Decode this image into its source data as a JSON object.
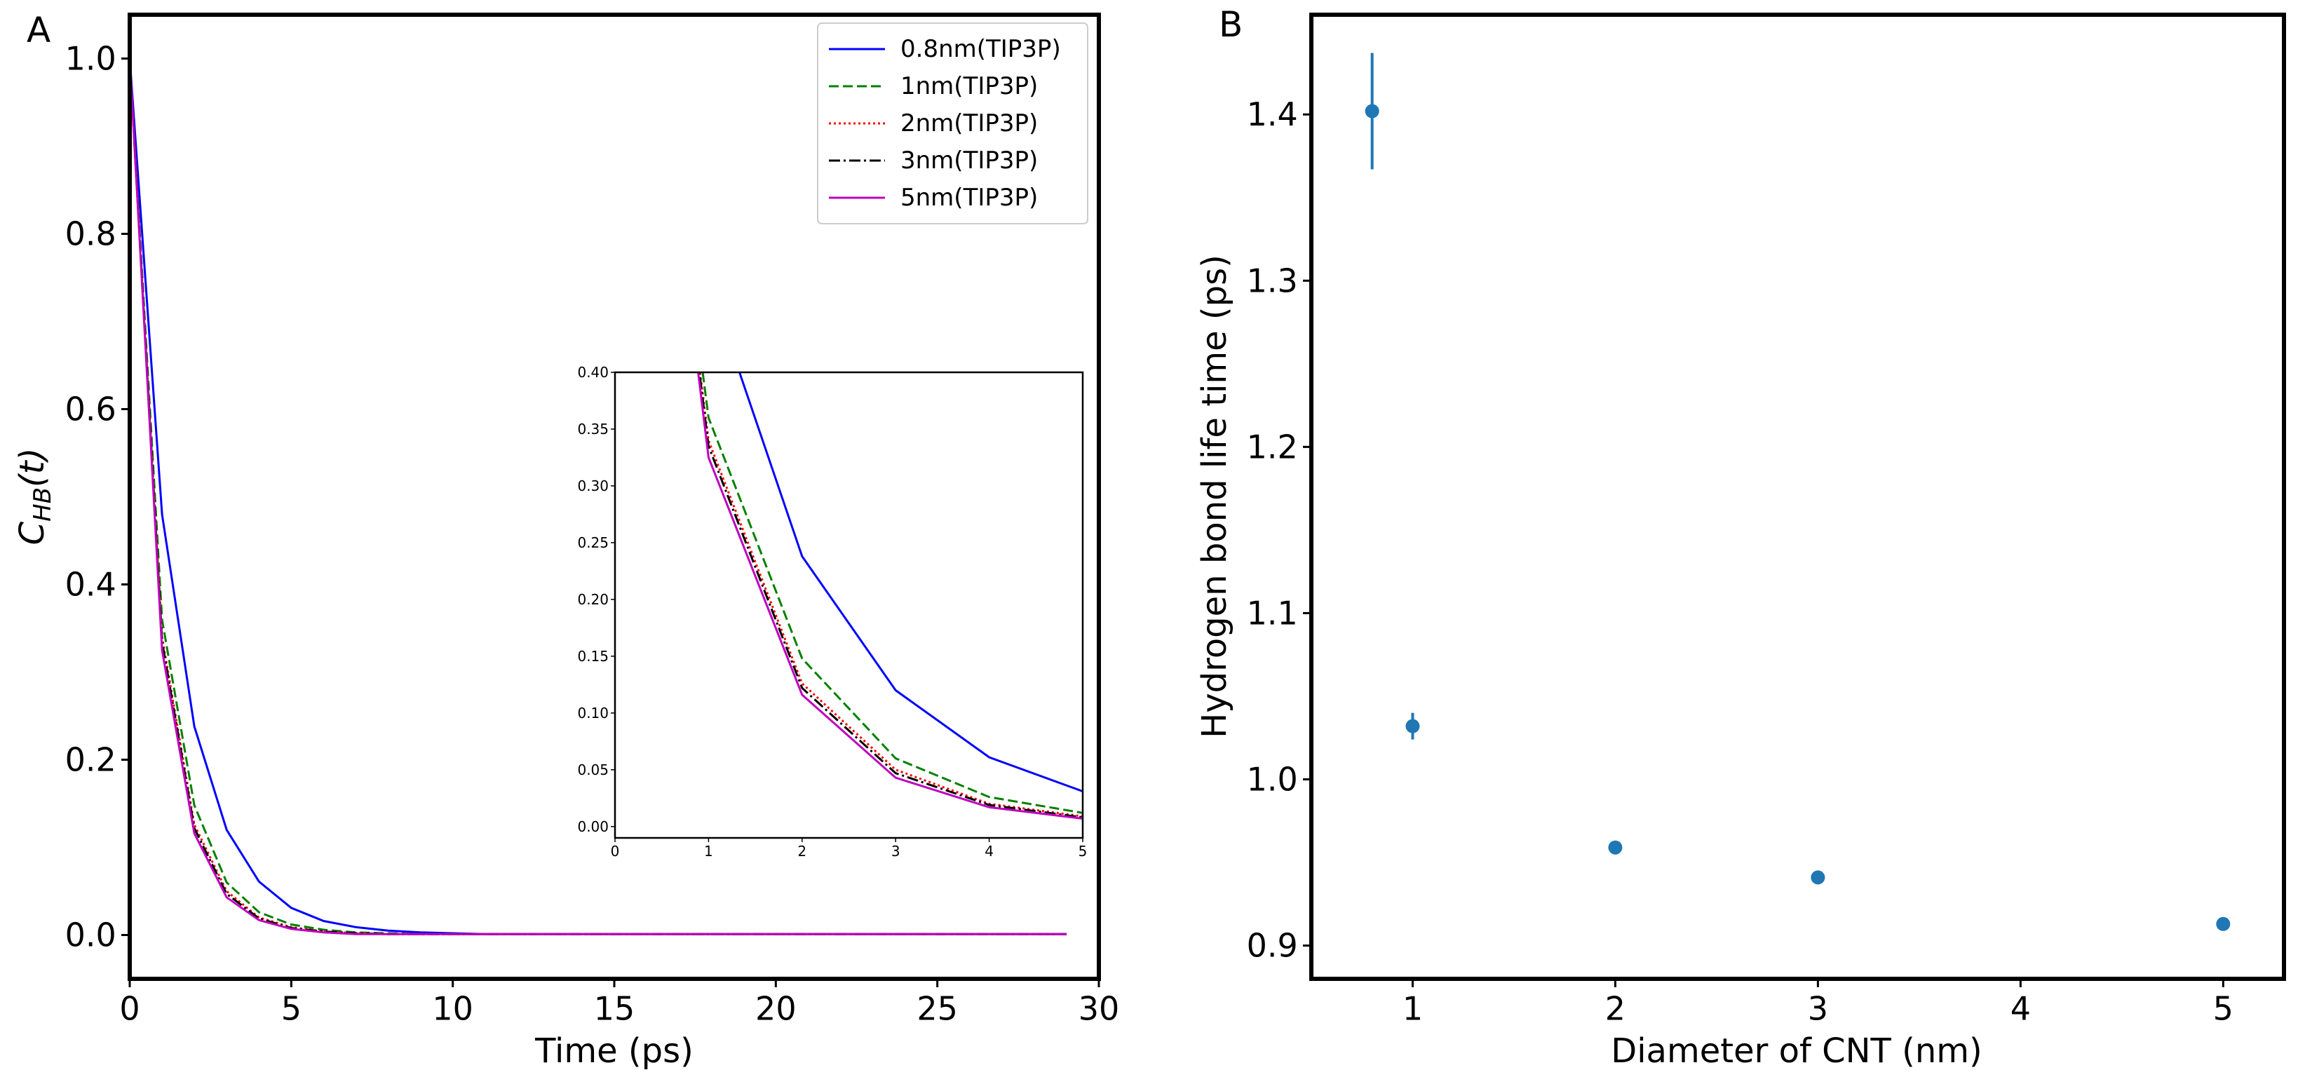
{
  "figure": {
    "panel_labels": [
      "A",
      "B"
    ]
  },
  "colors": {
    "axes": "#000000",
    "blue": "#0000ff",
    "green": "#008000",
    "red": "#ff0000",
    "black": "#000000",
    "magenta": "#bf00bf",
    "marker": "#1f77b4"
  },
  "chart_data": [
    {
      "panel": "A",
      "type": "line",
      "title": "",
      "xlabel": "Time (ps)",
      "ylabel_base": "C",
      "ylabel_sub": "HB",
      "ylabel_arg": "(t)",
      "xlim": [
        0,
        30
      ],
      "ylim": [
        -0.05,
        1.05
      ],
      "xticks": [
        0,
        5,
        10,
        15,
        20,
        25,
        30
      ],
      "yticks": [
        0.0,
        0.2,
        0.4,
        0.6,
        0.8,
        1.0
      ],
      "xtick_labels": [
        "0",
        "5",
        "10",
        "15",
        "20",
        "25",
        "30"
      ],
      "ytick_labels": [
        "0.0",
        "0.2",
        "0.4",
        "0.6",
        "0.8",
        "1.0"
      ],
      "legend_position": "top-right",
      "x": [
        0,
        1,
        2,
        3,
        4,
        5,
        6,
        7,
        8,
        9,
        10,
        11,
        12,
        13,
        14,
        15,
        16,
        17,
        18,
        19,
        20,
        21,
        22,
        23,
        24,
        25,
        26,
        27,
        28,
        29
      ],
      "series": [
        {
          "name": "0.8nm(TIP3P)",
          "color": "blue",
          "dash": "solid",
          "values": [
            1.0,
            0.48,
            0.238,
            0.12,
            0.061,
            0.031,
            0.016,
            0.009,
            0.005,
            0.003,
            0.002,
            0.001,
            0.001,
            0.001,
            0.001,
            0.001,
            0.001,
            0.001,
            0.001,
            0.001,
            0.001,
            0.001,
            0.001,
            0.001,
            0.001,
            0.001,
            0.001,
            0.001,
            0.001,
            0.001
          ]
        },
        {
          "name": "1nm(TIP3P)",
          "color": "green",
          "dash": "dashed",
          "values": [
            1.0,
            0.36,
            0.148,
            0.06,
            0.026,
            0.012,
            0.006,
            0.003,
            0.002,
            0.001,
            0.001,
            0.001,
            0.001,
            0.001,
            0.001,
            0.001,
            0.001,
            0.001,
            0.001,
            0.001,
            0.001,
            0.001,
            0.001,
            0.001,
            0.001,
            0.001,
            0.001,
            0.001,
            0.001,
            0.001
          ]
        },
        {
          "name": "2nm(TIP3P)",
          "color": "red",
          "dash": "dotted",
          "values": [
            1.0,
            0.34,
            0.126,
            0.05,
            0.02,
            0.009,
            0.004,
            0.002,
            0.001,
            0.001,
            0.001,
            0.001,
            0.001,
            0.001,
            0.001,
            0.001,
            0.001,
            0.001,
            0.001,
            0.001,
            0.001,
            0.001,
            0.001,
            0.001,
            0.001,
            0.001,
            0.001,
            0.001,
            0.001,
            0.001
          ]
        },
        {
          "name": "3nm(TIP3P)",
          "color": "black",
          "dash": "dashdot",
          "values": [
            1.0,
            0.335,
            0.122,
            0.047,
            0.019,
            0.008,
            0.004,
            0.002,
            0.001,
            0.001,
            0.001,
            0.001,
            0.001,
            0.001,
            0.001,
            0.001,
            0.001,
            0.001,
            0.001,
            0.001,
            0.001,
            0.001,
            0.001,
            0.001,
            0.001,
            0.001,
            0.001,
            0.001,
            0.001,
            0.001
          ]
        },
        {
          "name": "5nm(TIP3P)",
          "color": "magenta",
          "dash": "solid",
          "values": [
            1.0,
            0.325,
            0.116,
            0.043,
            0.017,
            0.007,
            0.003,
            0.001,
            0.001,
            0.001,
            0.001,
            0.001,
            0.001,
            0.001,
            0.001,
            0.001,
            0.001,
            0.001,
            0.001,
            0.001,
            0.001,
            0.001,
            0.001,
            0.001,
            0.001,
            0.001,
            0.001,
            0.001,
            0.001,
            0.001
          ]
        }
      ],
      "inset": {
        "xlim": [
          0,
          5
        ],
        "ylim": [
          -0.01,
          0.4
        ],
        "xticks": [
          0,
          1,
          2,
          3,
          4,
          5
        ],
        "yticks": [
          0.0,
          0.05,
          0.1,
          0.15,
          0.2,
          0.25,
          0.3,
          0.35,
          0.4
        ],
        "xtick_labels": [
          "0",
          "1",
          "2",
          "3",
          "4",
          "5"
        ],
        "ytick_labels": [
          "0.00",
          "0.05",
          "0.10",
          "0.15",
          "0.20",
          "0.25",
          "0.30",
          "0.35",
          "0.40"
        ]
      }
    },
    {
      "panel": "B",
      "type": "scatter",
      "title": "",
      "xlabel": "Diameter of CNT (nm)",
      "ylabel": "Hydrogen bond life time (ps)",
      "xlim": [
        0.5,
        5.3
      ],
      "ylim": [
        0.88,
        1.46
      ],
      "xticks": [
        1,
        2,
        3,
        4,
        5
      ],
      "yticks": [
        0.9,
        1.0,
        1.1,
        1.2,
        1.3,
        1.4
      ],
      "xtick_labels": [
        "1",
        "2",
        "3",
        "4",
        "5"
      ],
      "ytick_labels": [
        "0.9",
        "1.0",
        "1.1",
        "1.2",
        "1.3",
        "1.4"
      ],
      "points": [
        {
          "x": 0.8,
          "y": 1.402,
          "err": 0.035
        },
        {
          "x": 1.0,
          "y": 1.032,
          "err": 0.008
        },
        {
          "x": 2.0,
          "y": 0.959,
          "err": 0.0
        },
        {
          "x": 3.0,
          "y": 0.941,
          "err": 0.0
        },
        {
          "x": 5.0,
          "y": 0.913,
          "err": 0.0
        }
      ]
    }
  ]
}
